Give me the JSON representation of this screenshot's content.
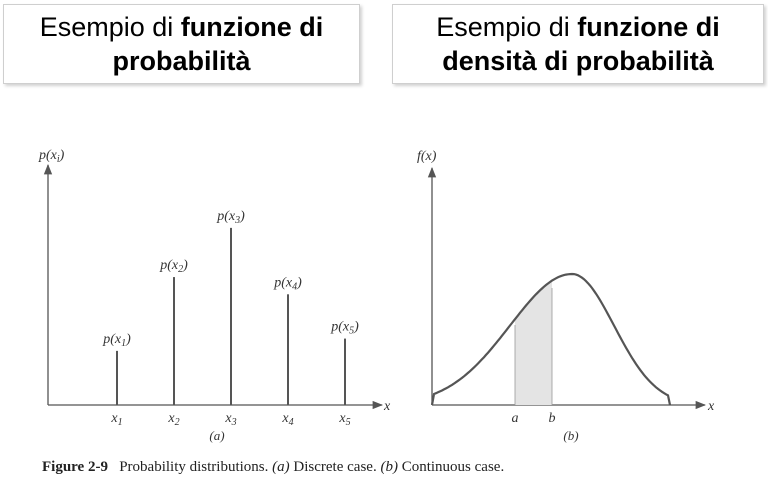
{
  "titles": {
    "left": {
      "prefix": "Esempio di ",
      "bold1": "funzione di",
      "bold2": "probabilità"
    },
    "right": {
      "prefix": "Esempio di ",
      "bold1": "funzione di",
      "bold2": "densità di probabilità"
    }
  },
  "discrete": {
    "ylabel": "p(x",
    "ylabel_sub": "i",
    "xlabel": "x",
    "panel_label": "(a)",
    "items": [
      {
        "x": "x",
        "sub": "1",
        "p": "p(x",
        "close": ")",
        "height": 0.22
      },
      {
        "x": "x",
        "sub": "2",
        "p": "p(x",
        "close": ")",
        "height": 0.52
      },
      {
        "x": "x",
        "sub": "3",
        "p": "p(x",
        "close": ")",
        "height": 0.72
      },
      {
        "x": "x",
        "sub": "4",
        "p": "p(x",
        "close": ")",
        "height": 0.45
      },
      {
        "x": "x",
        "sub": "5",
        "p": "p(x",
        "close": ")",
        "height": 0.27
      }
    ]
  },
  "continuous": {
    "ylabel": "f(x)",
    "xlabel": "x",
    "panel_label": "(b)",
    "a_label": "a",
    "b_label": "b",
    "shade_color": "#e4e4e4"
  },
  "caption": {
    "figure": "Figure 2-9",
    "text1": "Probability distributions. ",
    "a": "(a)",
    "text2": " Discrete case. ",
    "b": "(b)",
    "text3": " Continuous case."
  }
}
